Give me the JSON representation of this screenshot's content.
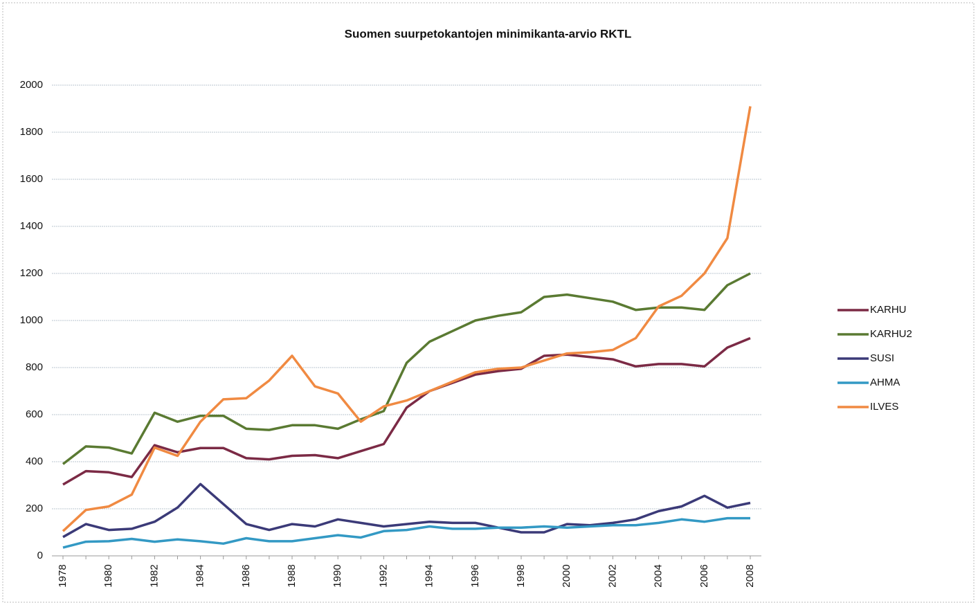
{
  "chart_data": {
    "type": "line",
    "title": "Suomen suurpetokantojen minimikanta-arvio RKTL",
    "categories": [
      "1978",
      null,
      "1980",
      null,
      "1982",
      null,
      "1984",
      null,
      "1986",
      null,
      "1988",
      null,
      "1990",
      null,
      "1992",
      null,
      "1994",
      null,
      "1996",
      null,
      "1998",
      null,
      "2000",
      null,
      "2002",
      null,
      "2004",
      null,
      "2006",
      null,
      "2008"
    ],
    "series": [
      {
        "name": "KARHU",
        "color": "#7b2a45",
        "values": [
          303,
          360,
          355,
          335,
          470,
          440,
          458,
          458,
          415,
          410,
          425,
          428,
          415,
          445,
          475,
          630,
          700,
          735,
          770,
          785,
          795,
          850,
          855,
          845,
          835,
          805,
          815,
          815,
          805,
          885,
          925
        ]
      },
      {
        "name": "KARHU2",
        "color": "#5a7a32",
        "values": [
          390,
          465,
          460,
          435,
          608,
          570,
          595,
          595,
          540,
          535,
          555,
          555,
          540,
          580,
          615,
          820,
          910,
          955,
          1000,
          1020,
          1035,
          1100,
          1110,
          1095,
          1080,
          1045,
          1055,
          1055,
          1045,
          1150,
          1200
        ]
      },
      {
        "name": "SUSI",
        "color": "#3b3a78",
        "values": [
          80,
          135,
          110,
          115,
          145,
          205,
          305,
          220,
          135,
          110,
          135,
          125,
          155,
          140,
          125,
          135,
          145,
          140,
          140,
          120,
          100,
          100,
          135,
          130,
          140,
          155,
          190,
          210,
          255,
          205,
          225
        ]
      },
      {
        "name": "AHMA",
        "color": "#3399c4",
        "values": [
          35,
          60,
          62,
          72,
          60,
          70,
          62,
          52,
          75,
          62,
          62,
          75,
          88,
          78,
          105,
          110,
          125,
          115,
          115,
          120,
          120,
          125,
          120,
          125,
          130,
          130,
          140,
          155,
          145,
          160,
          160
        ]
      },
      {
        "name": "ILVES",
        "color": "#f08a42",
        "values": [
          105,
          195,
          210,
          260,
          460,
          425,
          570,
          665,
          670,
          745,
          850,
          720,
          690,
          570,
          635,
          660,
          700,
          740,
          780,
          795,
          800,
          830,
          860,
          865,
          875,
          925,
          1060,
          1105,
          1200,
          1350,
          1910
        ]
      }
    ],
    "ylim": [
      0,
      2000
    ],
    "yticks": [
      0,
      200,
      400,
      600,
      800,
      1000,
      1200,
      1400,
      1600,
      1800,
      2000
    ],
    "grid": true,
    "legend": "right"
  }
}
